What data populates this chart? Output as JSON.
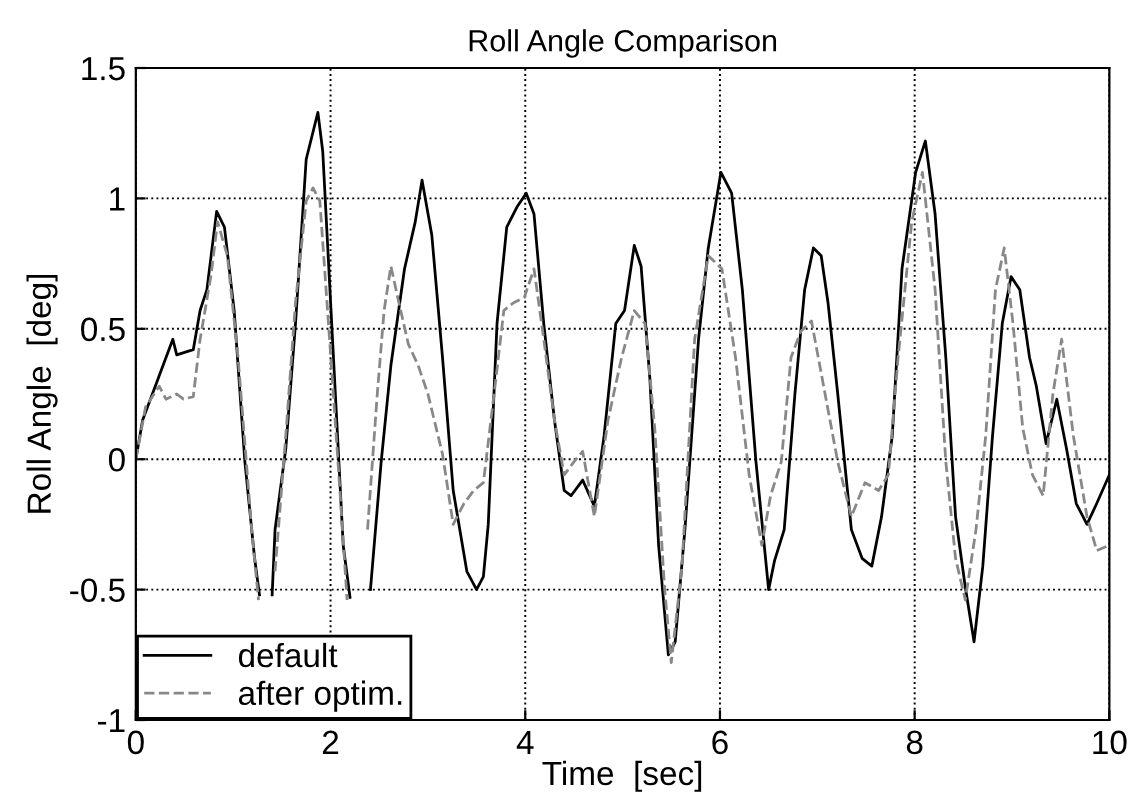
{
  "chart_data": {
    "type": "line",
    "title": "Roll Angle Comparison",
    "xlabel": "Time  [sec]",
    "ylabel": "Roll Angle  [deg]",
    "xlim": [
      0,
      10
    ],
    "ylim": [
      -1,
      1.5
    ],
    "xticks": [
      0,
      2,
      4,
      6,
      8,
      10
    ],
    "yticks": [
      -1,
      -0.5,
      0,
      0.5,
      1,
      1.5
    ],
    "grid": true,
    "legend": "bottom left",
    "series": [
      {
        "name": "default",
        "color": "#000000",
        "line_style": "solid",
        "x": [
          0,
          0.07,
          0.24,
          0.38,
          0.42,
          0.59,
          0.66,
          0.73,
          0.83,
          0.91,
          1.01,
          1.12,
          1.22,
          1.27,
          1.33,
          1.4,
          1.43,
          1.54,
          1.64,
          1.75,
          1.87,
          1.92,
          2.03,
          2.13,
          2.2,
          2.3,
          2.41,
          2.52,
          2.62,
          2.76,
          2.87,
          2.94,
          3.04,
          3.15,
          3.26,
          3.4,
          3.5,
          3.57,
          3.62,
          3.71,
          3.81,
          3.92,
          4.01,
          4.09,
          4.19,
          4.3,
          4.4,
          4.47,
          4.59,
          4.71,
          4.81,
          4.93,
          5.02,
          5.12,
          5.19,
          5.28,
          5.37,
          5.47,
          5.54,
          5.64,
          5.78,
          5.88,
          6.01,
          6.12,
          6.23,
          6.37,
          6.5,
          6.56,
          6.66,
          6.77,
          6.87,
          6.96,
          7.04,
          7.11,
          7.21,
          7.35,
          7.46,
          7.56,
          7.66,
          7.77,
          7.87,
          8.01,
          8.11,
          8.21,
          8.32,
          8.42,
          8.52,
          8.61,
          8.7,
          8.8,
          8.9,
          8.99,
          9.08,
          9.18,
          9.25,
          9.35,
          9.46,
          9.56,
          9.66,
          9.77,
          9.87,
          10.0
        ],
        "values": [
          0,
          0.15,
          0.32,
          0.46,
          0.4,
          0.42,
          0.57,
          0.65,
          0.95,
          0.89,
          0.57,
          -0.01,
          -0.38,
          -0.52,
          null,
          -0.52,
          -0.27,
          0.04,
          0.52,
          1.15,
          1.33,
          1.18,
          0.39,
          -0.33,
          -0.53,
          null,
          -0.5,
          -0.01,
          0.36,
          0.73,
          0.91,
          1.07,
          0.86,
          0.39,
          -0.12,
          -0.43,
          -0.5,
          -0.45,
          -0.25,
          0.52,
          0.89,
          0.97,
          1.02,
          0.94,
          0.52,
          0.15,
          -0.12,
          -0.14,
          -0.08,
          -0.18,
          0.09,
          0.52,
          0.57,
          0.82,
          0.74,
          0.31,
          -0.33,
          -0.75,
          -0.7,
          -0.27,
          0.46,
          0.81,
          1.1,
          1.02,
          0.65,
          -0.01,
          -0.5,
          -0.39,
          -0.27,
          0.25,
          0.65,
          0.81,
          0.78,
          0.6,
          0.25,
          -0.27,
          -0.38,
          -0.41,
          -0.22,
          0.09,
          0.73,
          1.1,
          1.22,
          0.94,
          0.39,
          -0.22,
          -0.49,
          -0.7,
          -0.41,
          0.09,
          0.52,
          0.7,
          0.65,
          0.39,
          0.28,
          0.06,
          0.23,
          0.04,
          -0.17,
          -0.25,
          -0.17,
          -0.06
        ]
      },
      {
        "name": "after optim.",
        "color": "#888888",
        "line_style": "dashed",
        "x": [
          0,
          0.1,
          0.24,
          0.31,
          0.42,
          0.49,
          0.59,
          0.66,
          0.77,
          0.84,
          0.94,
          1.05,
          1.19,
          1.26,
          1.33,
          1.43,
          1.54,
          1.64,
          1.75,
          1.82,
          1.89,
          1.99,
          2.1,
          2.17,
          2.27,
          2.38,
          2.48,
          2.55,
          2.62,
          2.69,
          2.8,
          2.9,
          3.0,
          3.15,
          3.26,
          3.37,
          3.47,
          3.57,
          3.68,
          3.78,
          3.88,
          3.99,
          4.09,
          4.19,
          4.3,
          4.4,
          4.5,
          4.59,
          4.71,
          4.85,
          4.99,
          5.12,
          5.23,
          5.33,
          5.43,
          5.5,
          5.61,
          5.74,
          5.88,
          6.02,
          6.16,
          6.3,
          6.43,
          6.52,
          6.63,
          6.73,
          6.83,
          6.94,
          7.08,
          7.21,
          7.35,
          7.49,
          7.63,
          7.73,
          7.83,
          7.97,
          8.08,
          8.21,
          8.32,
          8.42,
          8.52,
          8.63,
          8.73,
          8.83,
          8.92,
          9.01,
          9.11,
          9.21,
          9.32,
          9.42,
          9.51,
          9.63,
          9.77,
          9.87,
          10.0
        ],
        "values": [
          0,
          0.2,
          0.28,
          0.23,
          0.25,
          0.23,
          0.24,
          0.46,
          0.7,
          0.91,
          0.78,
          0.39,
          -0.27,
          -0.54,
          null,
          -0.43,
          0.09,
          0.6,
          0.99,
          1.04,
          0.99,
          0.46,
          -0.14,
          -0.54,
          null,
          -0.27,
          0.25,
          0.57,
          0.74,
          0.62,
          0.44,
          0.36,
          0.25,
          0.02,
          -0.25,
          -0.17,
          -0.12,
          -0.09,
          0.25,
          0.57,
          0.6,
          0.62,
          0.73,
          0.46,
          0.15,
          -0.06,
          -0.01,
          0.03,
          -0.22,
          0.15,
          0.39,
          0.57,
          0.52,
          0.12,
          -0.49,
          -0.78,
          -0.41,
          0.46,
          0.78,
          0.73,
          0.39,
          -0.06,
          -0.33,
          -0.14,
          -0.01,
          0.39,
          0.49,
          0.53,
          0.25,
          -0.01,
          -0.22,
          -0.09,
          -0.12,
          -0.06,
          0.39,
          0.91,
          1.1,
          0.65,
          -0.01,
          -0.38,
          -0.54,
          -0.27,
          0.09,
          0.65,
          0.81,
          0.52,
          0.12,
          -0.06,
          -0.14,
          0.25,
          0.46,
          0.09,
          -0.22,
          -0.35,
          -0.33
        ]
      }
    ]
  }
}
